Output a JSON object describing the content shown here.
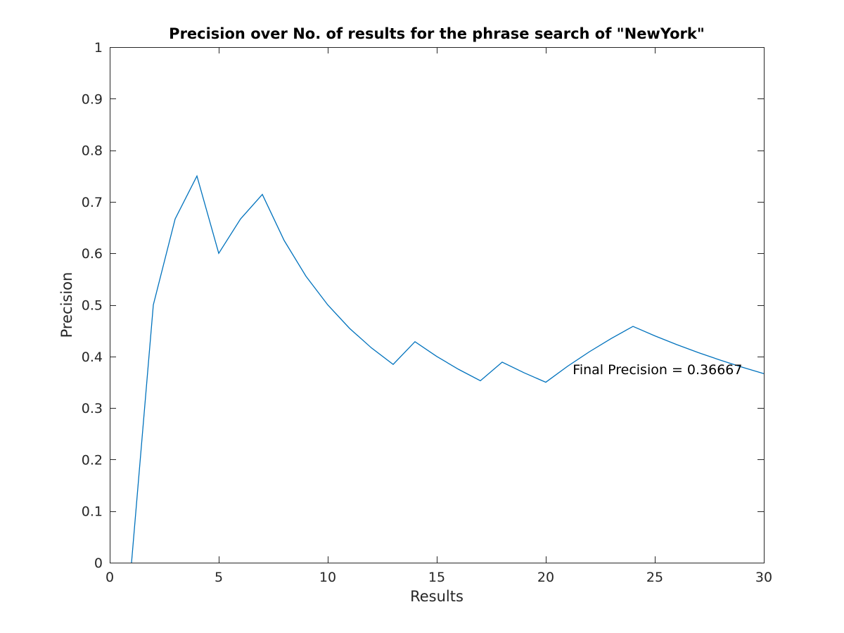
{
  "chart_data": {
    "type": "line",
    "title": "Precision over No. of results for the phrase search of \"NewYork\"",
    "xlabel": "Results",
    "ylabel": "Precision",
    "xlim": [
      0,
      30
    ],
    "ylim": [
      0,
      1
    ],
    "xticks": [
      "0",
      "5",
      "10",
      "15",
      "20",
      "25",
      "30"
    ],
    "yticks": [
      "0",
      "0.1",
      "0.2",
      "0.3",
      "0.4",
      "0.5",
      "0.6",
      "0.7",
      "0.8",
      "0.9",
      "1"
    ],
    "grid": false,
    "series": [
      {
        "color": "#0072bd",
        "x": [
          1,
          2,
          3,
          4,
          5,
          6,
          7,
          8,
          9,
          10,
          11,
          12,
          13,
          14,
          15,
          16,
          17,
          18,
          19,
          20,
          21,
          22,
          23,
          24,
          25,
          26,
          27,
          28,
          29,
          30
        ],
        "values": [
          0,
          0.5,
          0.6667,
          0.75,
          0.6,
          0.6667,
          0.7143,
          0.625,
          0.5556,
          0.5,
          0.4545,
          0.4167,
          0.3846,
          0.4286,
          0.4,
          0.375,
          0.3529,
          0.3889,
          0.3684,
          0.35,
          0.381,
          0.4091,
          0.4348,
          0.4583,
          0.44,
          0.4231,
          0.4074,
          0.3929,
          0.3793,
          0.3667
        ]
      }
    ],
    "annotations": [
      {
        "text": "Final Precision = 0.36667",
        "x": 21.3,
        "y": 0.36667
      }
    ]
  }
}
